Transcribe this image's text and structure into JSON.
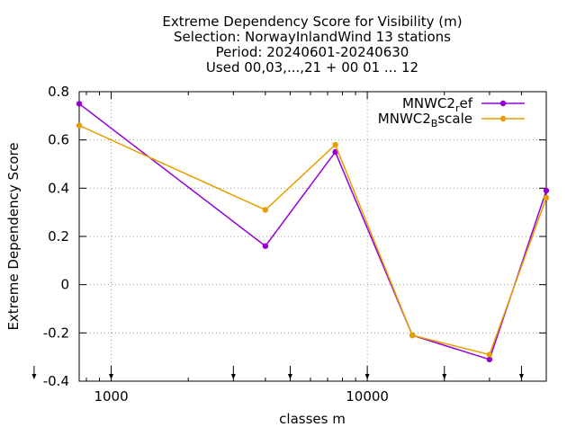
{
  "chart_data": {
    "type": "line",
    "title": [
      "Extreme Dependency Score  for Visibility (m)",
      "Selection: NorwayInlandWind     13 stations",
      "Period: 20240601-20240630",
      "Used 00,03,...,21 + 00 01 ... 12"
    ],
    "xlabel": "classes m",
    "ylabel": "Extreme Dependency Score",
    "x": [
      750,
      4000,
      7500,
      15000,
      30000,
      50000
    ],
    "series": [
      {
        "name": [
          "MNWC2",
          "r",
          "ef"
        ],
        "color": "#9400d3",
        "values": [
          0.75,
          0.16,
          0.55,
          -0.21,
          -0.31,
          0.39
        ]
      },
      {
        "name": [
          "MNWC2",
          "B",
          "scale"
        ],
        "color": "#e69f00",
        "values": [
          0.66,
          0.31,
          0.58,
          -0.21,
          -0.29,
          0.36
        ]
      }
    ],
    "xlog": true,
    "xlim": [
      750,
      50000
    ],
    "xticks": [
      1000,
      10000
    ],
    "ylim": [
      -0.4,
      0.8
    ],
    "yticks": [
      -0.4,
      -0.2,
      0,
      0.2,
      0.4,
      0.6,
      0.8
    ],
    "markers": [
      500,
      1000,
      3000,
      5000,
      10000,
      20000,
      40000
    ],
    "grid": true,
    "legend": "top-right"
  }
}
